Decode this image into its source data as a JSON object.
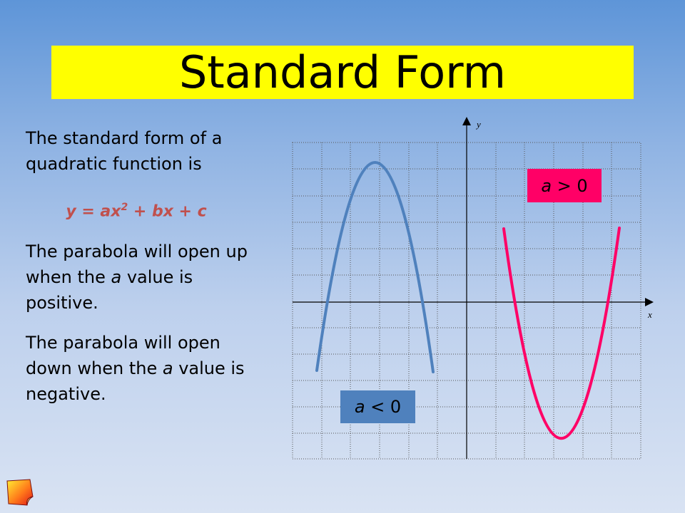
{
  "slide": {
    "title": "Standard Form",
    "para1": "The standard form of a quadratic function is",
    "formula_main": "y = ax",
    "formula_exp": "2",
    "formula_rest": " + bx + c",
    "para2_a": "The parabola will open up when the ",
    "para2_var": "a",
    "para2_b": " value is positive.",
    "para3_a": "The parabola will open down when the ",
    "para3_var": "a",
    "para3_b": " value is negative."
  },
  "graph": {
    "y_label": "y",
    "x_label": "x",
    "label_pos_var": "a",
    "label_pos_rest": " > 0",
    "label_neg_var": "a",
    "label_neg_rest": " < 0"
  },
  "colors": {
    "title_bg": "#ffff00",
    "formula": "#c0504d",
    "blue_curve": "#4f81bd",
    "pink_curve": "#ff0066",
    "label_pos_bg": "#ff0066",
    "label_neg_bg": "#4f81bd"
  }
}
